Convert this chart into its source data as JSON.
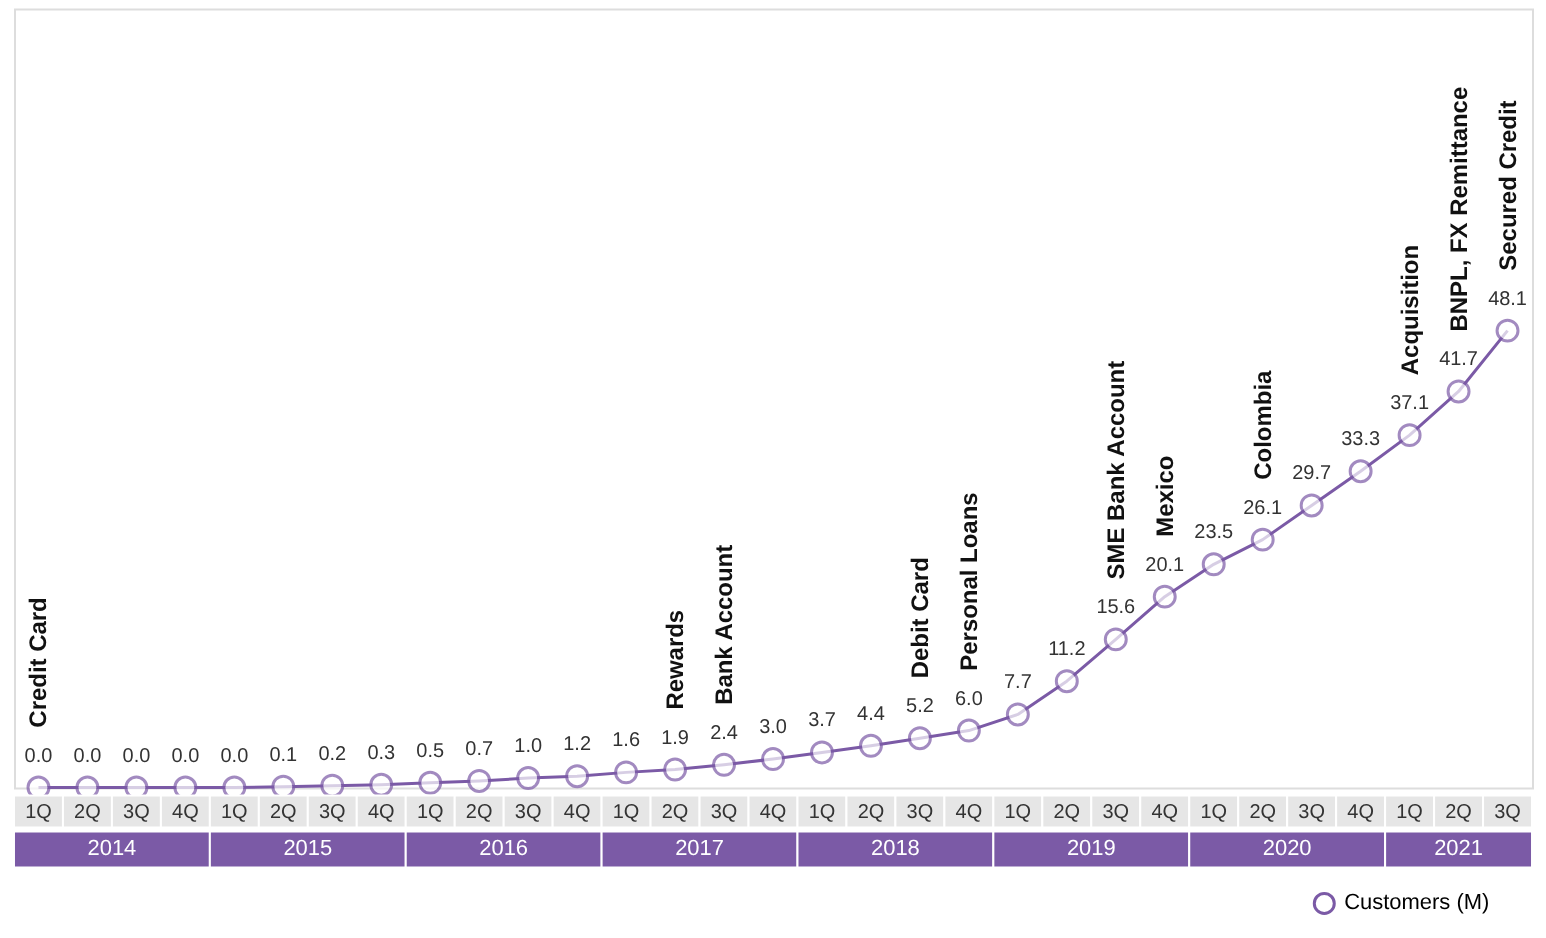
{
  "chart_data": {
    "type": "line",
    "categories": [
      "1Q",
      "2Q",
      "3Q",
      "4Q",
      "1Q",
      "2Q",
      "3Q",
      "4Q",
      "1Q",
      "2Q",
      "3Q",
      "4Q",
      "1Q",
      "2Q",
      "3Q",
      "4Q",
      "1Q",
      "2Q",
      "3Q",
      "4Q",
      "1Q",
      "2Q",
      "3Q",
      "4Q",
      "1Q",
      "2Q",
      "3Q",
      "4Q",
      "1Q",
      "2Q",
      "3Q"
    ],
    "series": [
      {
        "name": "Customers (M)",
        "color": "#7b5aa6",
        "values": [
          0.0,
          0.0,
          0.0,
          0.0,
          0.0,
          0.1,
          0.2,
          0.3,
          0.5,
          0.7,
          1.0,
          1.2,
          1.6,
          1.9,
          2.4,
          3.0,
          3.7,
          4.4,
          5.2,
          6.0,
          7.7,
          11.2,
          15.6,
          20.1,
          23.5,
          26.1,
          29.7,
          33.3,
          37.1,
          41.7,
          48.1
        ],
        "value_labels": [
          "0.0",
          "0.0",
          "0.0",
          "0.0",
          "0.0",
          "0.1",
          "0.2",
          "0.3",
          "0.5",
          "0.7",
          "1.0",
          "1.2",
          "1.6",
          "1.9",
          "2.4",
          "3.0",
          "3.7",
          "4.4",
          "5.2",
          "6.0",
          "7.7",
          "11.2",
          "15.6",
          "20.1",
          "23.5",
          "26.1",
          "29.7",
          "33.3",
          "37.1",
          "41.7",
          "48.1"
        ]
      }
    ],
    "ylim": [
      0,
      82
    ],
    "tick_labels": "x",
    "marker": "circle",
    "line_style": "solid",
    "grid": false,
    "legend": "bottom right",
    "annotations": [
      "2014",
      "2015",
      "2016",
      "2017",
      "2018",
      "2019",
      "2020",
      "2021",
      {
        "text": "Credit Card",
        "y": 0.0
      },
      {
        "text": "Rewards",
        "y": 1.9
      },
      {
        "text": "Bank Account",
        "y": 2.4
      },
      {
        "text": "Debit Card",
        "y": 5.2
      },
      {
        "text": "Personal Loans",
        "y": 6.0
      },
      {
        "text": "SME Bank Account",
        "y": 15.6
      },
      {
        "text": "Mexico",
        "y": 20.1
      },
      {
        "text": "Colombia",
        "y": 26.1
      },
      {
        "text": "Acquisition",
        "y": 37.1
      },
      {
        "text": "BNPL, FX Remittance",
        "y": 41.7
      },
      {
        "text": "Secured Credit",
        "y": 48.1
      }
    ]
  }
}
